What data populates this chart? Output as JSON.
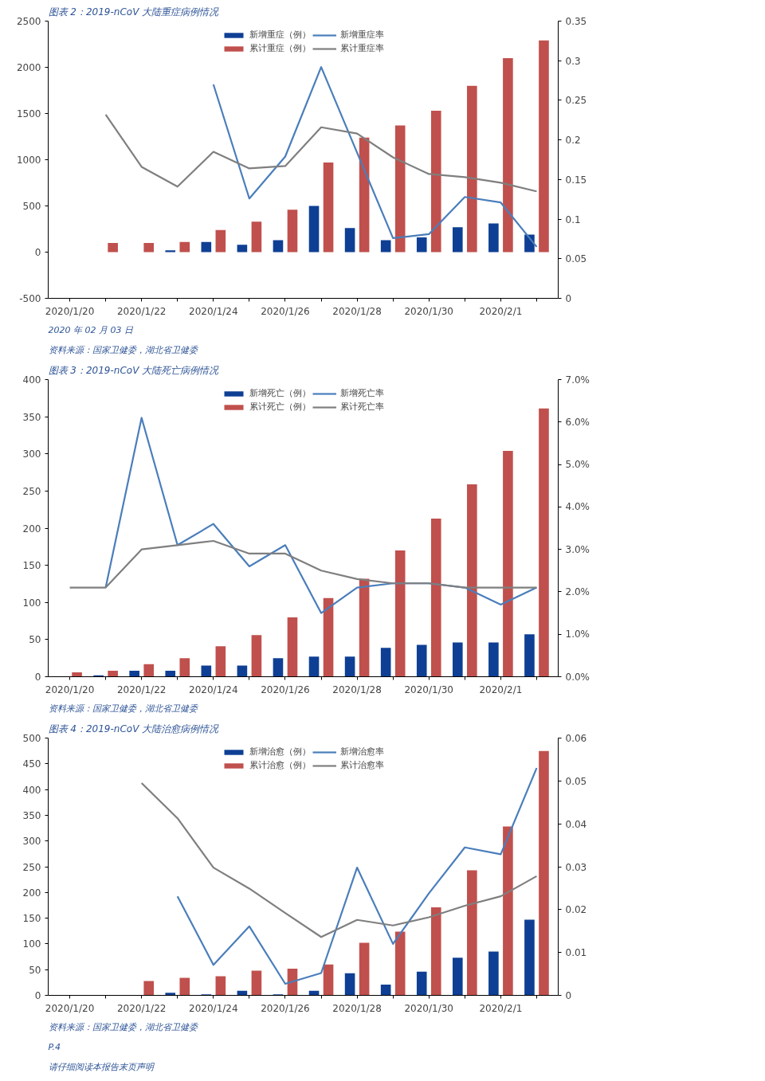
{
  "chart_data": [
    {
      "type": "bar",
      "title": "图表 2：2019-nCoV 大陆重症病例情况",
      "categories": [
        "2020/1/20",
        null,
        "2020/1/22",
        null,
        "2020/1/24",
        null,
        "2020/1/26",
        null,
        "2020/1/28",
        null,
        "2020/1/30",
        null,
        "2020/2/1",
        null
      ],
      "series": [
        {
          "name": "新增重症（例）",
          "color": "#0e3f94",
          "values": [
            null,
            null,
            null,
            20,
            110,
            80,
            130,
            500,
            260,
            130,
            160,
            270,
            310,
            190
          ]
        },
        {
          "name": "累计重症（例）",
          "color": "#c0504d",
          "values": [
            null,
            100,
            100,
            110,
            240,
            330,
            460,
            970,
            1240,
            1370,
            1530,
            1800,
            2100,
            2290
          ]
        },
        {
          "name": "新增重症率",
          "type": "line",
          "axis": "y2",
          "color": "#4a7ebb",
          "values": [
            null,
            null,
            null,
            null,
            0.27,
            0.126,
            0.179,
            0.292,
            0.184,
            0.076,
            0.081,
            0.128,
            0.121,
            0.065
          ]
        },
        {
          "name": "累计重症率",
          "type": "line",
          "axis": "y2",
          "color": "#7f7f7f",
          "values": [
            null,
            0.232,
            0.166,
            0.141,
            0.185,
            0.164,
            0.167,
            0.216,
            0.208,
            0.178,
            0.157,
            0.153,
            0.146,
            0.135
          ]
        }
      ],
      "ylim": [
        -500,
        2500
      ],
      "yticks": [
        -500,
        0,
        500,
        1000,
        1500,
        2000,
        2500
      ],
      "y2lim": [
        0,
        0.35
      ],
      "y2ticks": [
        0,
        0.05,
        0.1,
        0.15,
        0.2,
        0.25,
        0.3,
        0.35
      ],
      "legend": "top",
      "grid": false,
      "annotations": [
        "2020 年 02 月 03 日",
        "资料来源：国家卫健委，湖北省卫健委"
      ]
    },
    {
      "type": "bar",
      "title": "图表 3：2019-nCoV 大陆死亡病例情况",
      "categories": [
        "2020/1/20",
        null,
        "2020/1/22",
        null,
        "2020/1/24",
        null,
        "2020/1/26",
        null,
        "2020/1/28",
        null,
        "2020/1/30",
        null,
        "2020/2/1",
        null
      ],
      "series": [
        {
          "name": "新增死亡（例）",
          "color": "#0e3f94",
          "values": [
            null,
            2,
            8,
            8,
            15,
            15,
            25,
            27,
            27,
            39,
            43,
            46,
            46,
            57
          ]
        },
        {
          "name": "累计死亡（例）",
          "color": "#c0504d",
          "values": [
            6,
            8,
            17,
            25,
            41,
            56,
            80,
            106,
            132,
            170,
            213,
            259,
            304,
            361
          ]
        },
        {
          "name": "新增死亡率",
          "type": "line",
          "axis": "y2",
          "color": "#4a7ebb",
          "values": [
            null,
            2.1,
            6.1,
            3.1,
            3.6,
            2.6,
            3.1,
            1.5,
            2.1,
            2.2,
            2.2,
            2.1,
            1.7,
            2.1
          ]
        },
        {
          "name": "累计死亡率",
          "type": "line",
          "axis": "y2",
          "color": "#7f7f7f",
          "values": [
            2.1,
            2.1,
            3.0,
            3.1,
            3.2,
            2.9,
            2.9,
            2.5,
            2.3,
            2.2,
            2.2,
            2.1,
            2.1,
            2.1
          ]
        }
      ],
      "ylim": [
        0,
        400
      ],
      "yticks": [
        0,
        50,
        100,
        150,
        200,
        250,
        300,
        350,
        400
      ],
      "y2lim": [
        0,
        7
      ],
      "y2ticks": [
        {
          "value": 0,
          "label": "0.0%"
        },
        {
          "value": 1,
          "label": "1.0%"
        },
        {
          "value": 2,
          "label": "2.0%"
        },
        {
          "value": 3,
          "label": "3.0%"
        },
        {
          "value": 4,
          "label": "4.0%"
        },
        {
          "value": 5,
          "label": "5.0%"
        },
        {
          "value": 6,
          "label": "6.0%"
        },
        {
          "value": 7,
          "label": "7.0%"
        }
      ],
      "legend": "top",
      "grid": false,
      "annotations": [
        "资料来源：国家卫健委，湖北省卫健委"
      ]
    },
    {
      "type": "bar",
      "title": "图表 4：2019-nCoV 大陆治愈病例情况",
      "categories": [
        "2020/1/20",
        null,
        "2020/1/22",
        null,
        "2020/1/24",
        null,
        "2020/1/26",
        null,
        "2020/1/28",
        null,
        "2020/1/30",
        null,
        "2020/2/1",
        null
      ],
      "series": [
        {
          "name": "新增治愈（例）",
          "color": "#0e3f94",
          "values": [
            null,
            null,
            null,
            5,
            2,
            9,
            2,
            9,
            43,
            21,
            46,
            73,
            85,
            147
          ]
        },
        {
          "name": "累计治愈（例）",
          "color": "#c0504d",
          "values": [
            null,
            null,
            28,
            34,
            37,
            48,
            52,
            60,
            102,
            124,
            171,
            243,
            328,
            475
          ]
        },
        {
          "name": "新增治愈率",
          "type": "line",
          "axis": "y2",
          "color": "#4a7ebb",
          "values": [
            null,
            null,
            null,
            0.0231,
            0.0071,
            0.0161,
            0.0027,
            0.0052,
            0.0298,
            0.012,
            0.0238,
            0.0345,
            0.0329,
            0.053
          ]
        },
        {
          "name": "累计治愈率",
          "type": "line",
          "axis": "y2",
          "color": "#7f7f7f",
          "values": [
            null,
            null,
            0.0495,
            0.0413,
            0.0298,
            0.0249,
            0.0192,
            0.0136,
            0.0176,
            0.0163,
            0.0182,
            0.0209,
            0.0231,
            0.0278
          ]
        }
      ],
      "ylim": [
        0,
        500
      ],
      "yticks": [
        0,
        50,
        100,
        150,
        200,
        250,
        300,
        350,
        400,
        450,
        500
      ],
      "y2lim": [
        0,
        0.06
      ],
      "y2ticks": [
        0,
        0.01,
        0.02,
        0.03,
        0.04,
        0.05,
        0.06
      ],
      "legend": "top",
      "grid": false,
      "annotations": [
        "资料来源：国家卫健委，湖北省卫健委",
        "P.4",
        "请仔细阅读本报告末页声明"
      ]
    }
  ]
}
